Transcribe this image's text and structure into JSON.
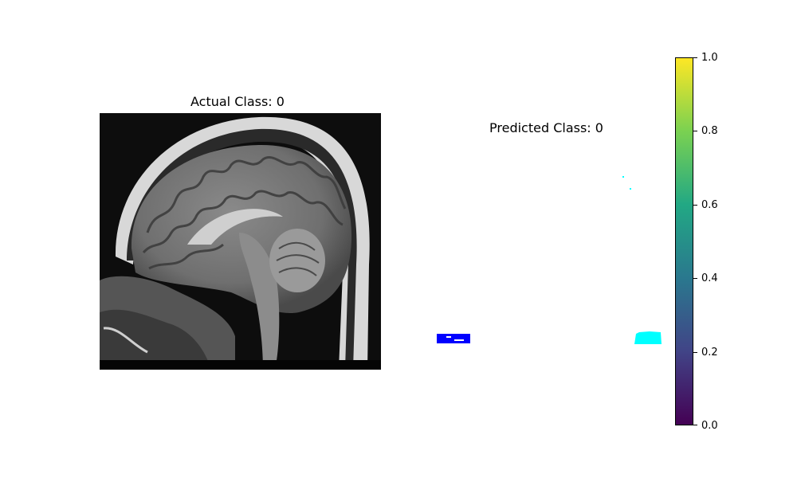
{
  "left_panel": {
    "title": "Actual Class: 0"
  },
  "right_panel": {
    "title": "Predicted Class: 0"
  },
  "colorbar": {
    "colormap": "viridis",
    "range": [
      0,
      1
    ],
    "ticks": [
      {
        "value": 0.0,
        "label": "0.0"
      },
      {
        "value": 0.2,
        "label": "0.2"
      },
      {
        "value": 0.4,
        "label": "0.4"
      },
      {
        "value": 0.6,
        "label": "0.6"
      },
      {
        "value": 0.8,
        "label": "0.8"
      },
      {
        "value": 1.0,
        "label": "1.0"
      }
    ],
    "stops": [
      "#440154",
      "#414487",
      "#2a788e",
      "#22a884",
      "#7ad151",
      "#fde725"
    ]
  },
  "colors": {
    "background": "#ffffff",
    "mask_blue": "#0000ff",
    "mask_cyan": "#00ffff"
  }
}
